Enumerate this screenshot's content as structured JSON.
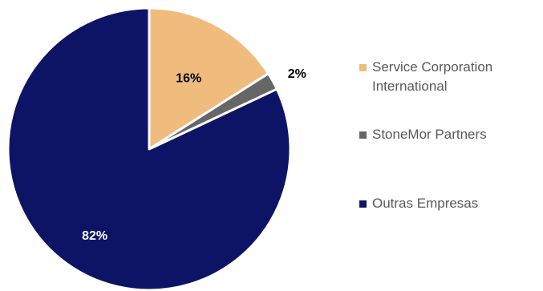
{
  "chart_data": {
    "type": "pie",
    "title": "",
    "legend_position": "right",
    "slices": [
      {
        "label": "Service Corporation International",
        "value": 16,
        "display": "16%",
        "color": "#F0BC7E",
        "label_color": "#000000"
      },
      {
        "label": "StoneMor Partners",
        "value": 2,
        "display": "2%",
        "color": "#666666",
        "label_color": "#000000"
      },
      {
        "label": "Outras Empresas",
        "value": 82,
        "display": "82%",
        "color": "#0D1466",
        "label_color": "#FFFFFF"
      }
    ]
  },
  "legend": {
    "items": [
      {
        "label": "Service Corporation International",
        "color": "#F0BC7E"
      },
      {
        "label": "StoneMor Partners",
        "color": "#666666"
      },
      {
        "label": "Outras Empresas",
        "color": "#0D1466"
      }
    ]
  }
}
